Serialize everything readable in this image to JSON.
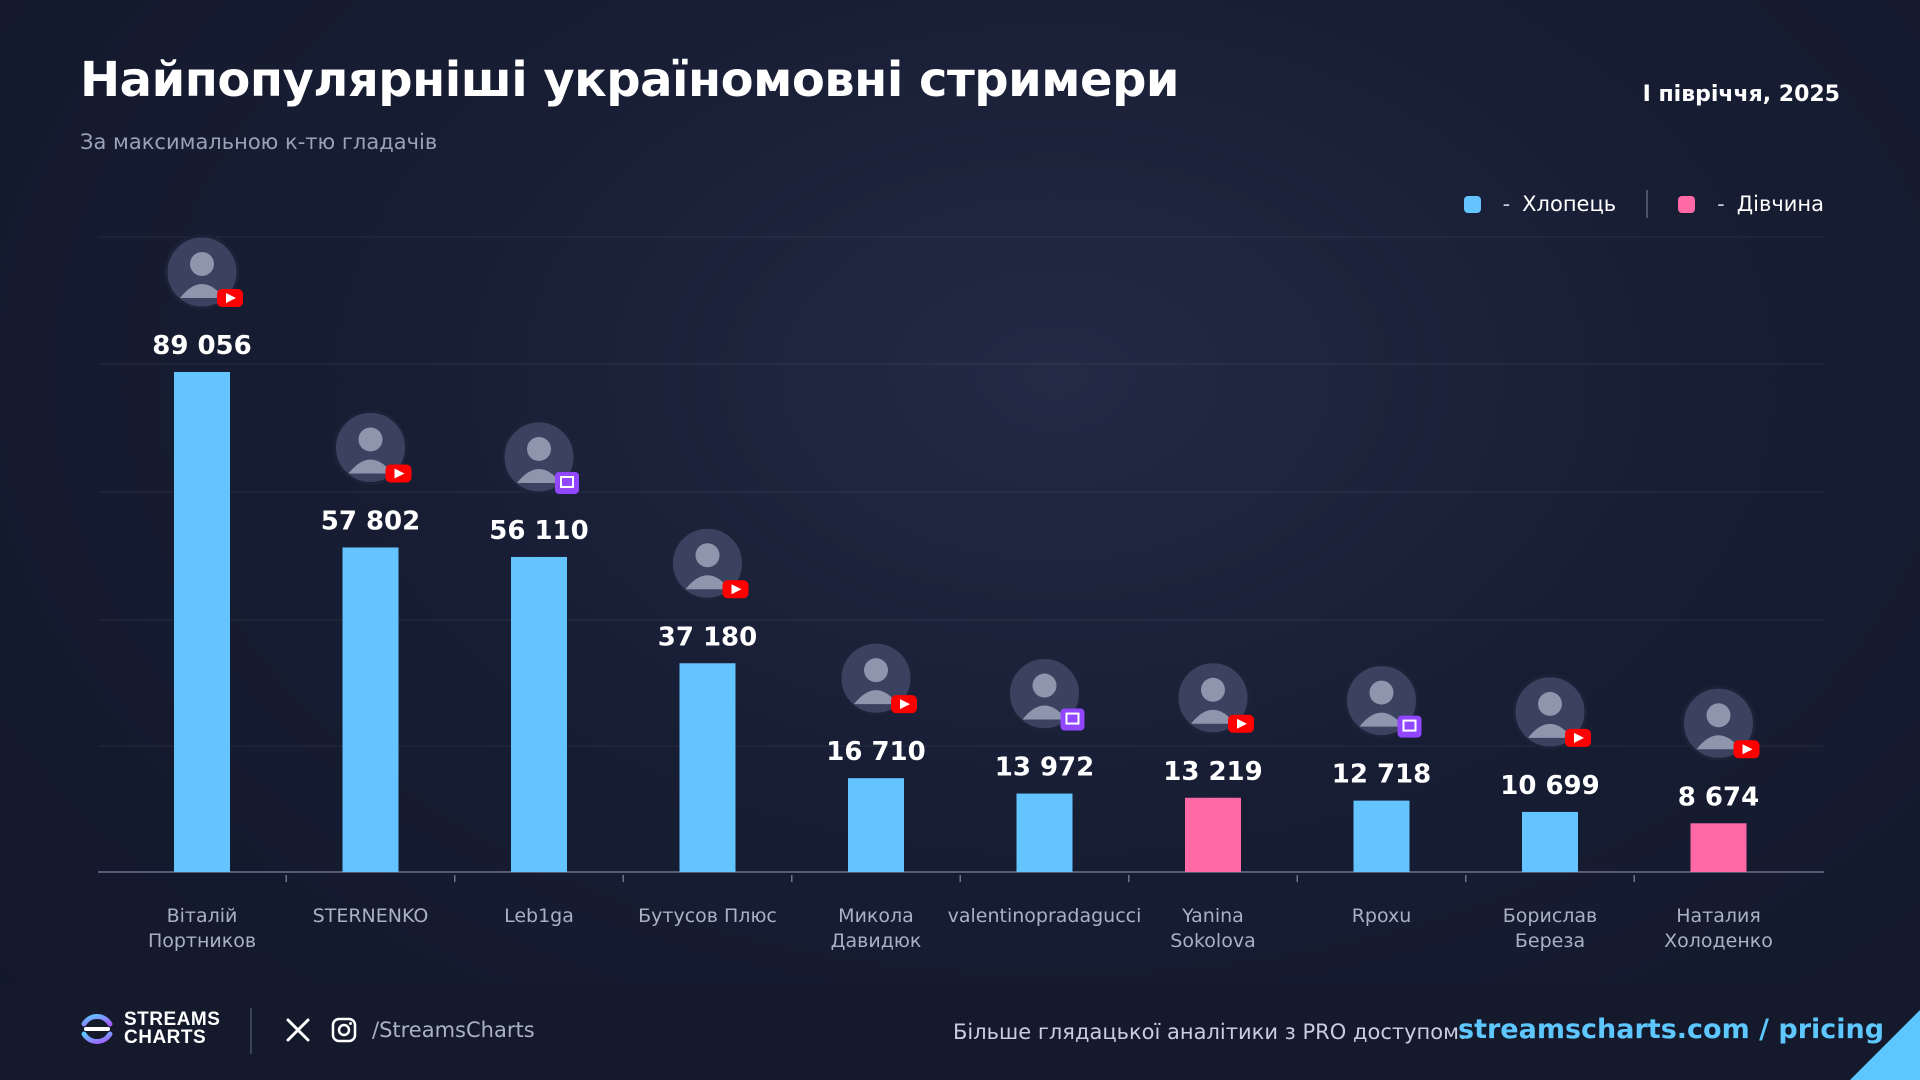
{
  "header": {
    "title": "Найпопулярніші україномовні стримери",
    "subtitle": "За максимальною к-тю гладачів",
    "period": "І півріччя, 2025"
  },
  "legend": {
    "male_label": "Хлопець",
    "female_label": "Дівчина",
    "separator": "-"
  },
  "colors": {
    "male": "#63c4ff",
    "female": "#ff6aa6",
    "youtube": "#ff0000",
    "twitch": "#9146ff",
    "link": "#5ec7ff"
  },
  "chart_data": {
    "type": "bar",
    "title": "Найпопулярніші україномовні стримери",
    "ylim": [
      0,
      100000
    ],
    "grid": true,
    "legend_position": "top-right",
    "bars": [
      {
        "name": "Віталій Портников",
        "label_lines": [
          "Віталій",
          "Портников"
        ],
        "value": 89056,
        "value_label": "89 056",
        "gender": "male",
        "platform": "youtube"
      },
      {
        "name": "STERNENKO",
        "label_lines": [
          "STERNENKO"
        ],
        "value": 57802,
        "value_label": "57 802",
        "gender": "male",
        "platform": "youtube"
      },
      {
        "name": "Leb1ga",
        "label_lines": [
          "Leb1ga"
        ],
        "value": 56110,
        "value_label": "56 110",
        "gender": "male",
        "platform": "twitch"
      },
      {
        "name": "Бутусов Плюс",
        "label_lines": [
          "Бутусов Плюс"
        ],
        "value": 37180,
        "value_label": "37 180",
        "gender": "male",
        "platform": "youtube"
      },
      {
        "name": "Микола Давидюк",
        "label_lines": [
          "Микола",
          "Давидюк"
        ],
        "value": 16710,
        "value_label": "16 710",
        "gender": "male",
        "platform": "youtube"
      },
      {
        "name": "valentinopradagucci",
        "label_lines": [
          "valentinopradagucci"
        ],
        "value": 13972,
        "value_label": "13 972",
        "gender": "male",
        "platform": "twitch"
      },
      {
        "name": "Yanina Sokolova",
        "label_lines": [
          "Yanina",
          "Sokolova"
        ],
        "value": 13219,
        "value_label": "13 219",
        "gender": "female",
        "platform": "youtube"
      },
      {
        "name": "Rpoxu",
        "label_lines": [
          "Rpoxu"
        ],
        "value": 12718,
        "value_label": "12 718",
        "gender": "male",
        "platform": "twitch"
      },
      {
        "name": "Борислав Береза",
        "label_lines": [
          "Борислав",
          "Береза"
        ],
        "value": 10699,
        "value_label": "10 699",
        "gender": "male",
        "platform": "youtube"
      },
      {
        "name": "Наталия Холоденко",
        "label_lines": [
          "Наталия",
          "Холоденко"
        ],
        "value": 8674,
        "value_label": "8 674",
        "gender": "female",
        "platform": "youtube"
      }
    ]
  },
  "footer": {
    "logo_line1": "STREAMS",
    "logo_line2": "CHARTS",
    "social_handle": "/StreamsCharts",
    "cta_text": "Більше глядацької аналітики з PRO доступом:",
    "cta_link": "streamscharts.com / pricing",
    "icons": [
      "x-icon",
      "instagram-icon"
    ]
  }
}
